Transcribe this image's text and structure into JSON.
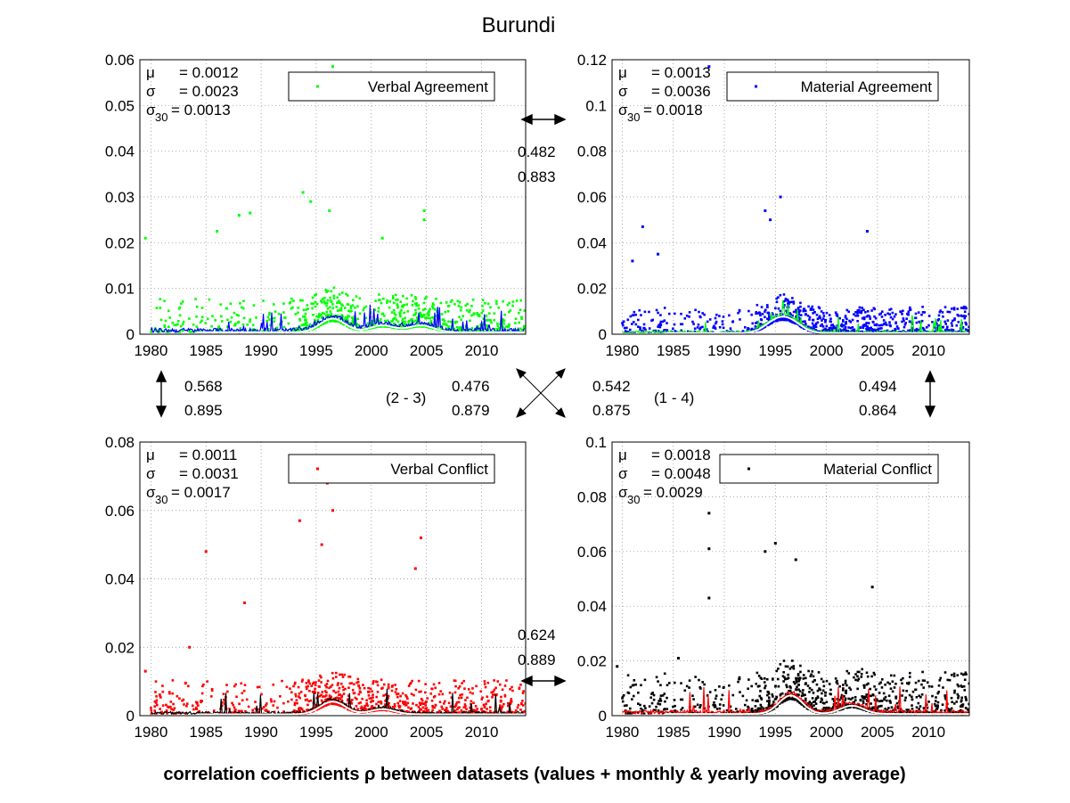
{
  "title": "Burundi",
  "footer": "correlation coefficients ρ between datasets (values + monthly & yearly moving average)",
  "colors": {
    "green": "#00ff00",
    "blue": "#0000ff",
    "red": "#ff0000",
    "black": "#000000",
    "white": "#ffffff"
  },
  "chart_data": [
    {
      "type": "scatter",
      "name": "Verbal Agreement",
      "legend": "Verbal Agreement",
      "legend_position": "top-right",
      "color": "#00ff00",
      "avg_color": "#0000ff",
      "xlim": [
        1979,
        2014
      ],
      "ylim": [
        0,
        0.06
      ],
      "xticks": [
        "1980",
        "1985",
        "1990",
        "1995",
        "2000",
        "2005",
        "2010"
      ],
      "yticks": [
        "0",
        "0.01",
        "0.02",
        "0.03",
        "0.04",
        "0.05",
        "0.06"
      ],
      "grid": true,
      "stats": {
        "mu": "= 0.0012",
        "sigma": "= 0.0023",
        "sigma30": "= 0.0013"
      },
      "base": 0.0012,
      "noise": 0.0023,
      "peaks": [
        [
          1996.5,
          0.004
        ],
        [
          2001,
          0.002
        ],
        [
          2004.5,
          0.002
        ]
      ],
      "outliers": [
        [
          1979.5,
          0.021
        ],
        [
          1986,
          0.0225
        ],
        [
          1988,
          0.026
        ],
        [
          1989,
          0.0265
        ],
        [
          1993.8,
          0.031
        ],
        [
          1994.5,
          0.029
        ],
        [
          1996.2,
          0.027
        ],
        [
          1996.5,
          0.0585
        ],
        [
          2001,
          0.021
        ],
        [
          2004.8,
          0.027
        ],
        [
          2004.8,
          0.025
        ]
      ]
    },
    {
      "type": "scatter",
      "name": "Material Agreement",
      "legend": "Material Agreement",
      "legend_position": "top-right",
      "color": "#0000ff",
      "avg_color": "#00ff00",
      "xlim": [
        1979,
        2014
      ],
      "ylim": [
        0,
        0.12
      ],
      "xticks": [
        "1980",
        "1985",
        "1990",
        "1995",
        "2000",
        "2005",
        "2010"
      ],
      "yticks": [
        "0",
        "0.02",
        "0.04",
        "0.06",
        "0.08",
        "0.1",
        "0.12"
      ],
      "grid": true,
      "stats": {
        "mu": "= 0.0013",
        "sigma": "= 0.0036",
        "sigma30": "= 0.0018"
      },
      "base": 0.0013,
      "noise": 0.0036,
      "peaks": [
        [
          1995,
          0.006
        ],
        [
          1996.5,
          0.006
        ]
      ],
      "outliers": [
        [
          1982,
          0.047
        ],
        [
          1988.5,
          0.117
        ],
        [
          1994,
          0.054
        ],
        [
          1995.5,
          0.06
        ],
        [
          1994.5,
          0.05
        ],
        [
          2004,
          0.045
        ],
        [
          1983.5,
          0.035
        ],
        [
          1981,
          0.032
        ]
      ]
    },
    {
      "type": "scatter",
      "name": "Verbal Conflict",
      "legend": "Verbal Conflict",
      "legend_position": "top-right",
      "color": "#ff0000",
      "avg_color": "#000000",
      "xlim": [
        1979,
        2014
      ],
      "ylim": [
        0,
        0.08
      ],
      "xticks": [
        "1980",
        "1985",
        "1990",
        "1995",
        "2000",
        "2005",
        "2010"
      ],
      "yticks": [
        "0",
        "0.02",
        "0.04",
        "0.06",
        "0.08"
      ],
      "grid": true,
      "stats": {
        "mu": "= 0.0011",
        "sigma": "= 0.0031",
        "sigma30": "= 0.0017"
      },
      "base": 0.0011,
      "noise": 0.0031,
      "peaks": [
        [
          1996.5,
          0.005
        ],
        [
          2001,
          0.002
        ]
      ],
      "outliers": [
        [
          1985,
          0.048
        ],
        [
          1993.5,
          0.057
        ],
        [
          1996,
          0.068
        ],
        [
          1996.5,
          0.06
        ],
        [
          1995.5,
          0.05
        ],
        [
          2004.5,
          0.052
        ],
        [
          2004,
          0.043
        ],
        [
          1983.5,
          0.02
        ],
        [
          1988.5,
          0.033
        ],
        [
          1979.5,
          0.013
        ]
      ]
    },
    {
      "type": "scatter",
      "name": "Material Conflict",
      "legend": "Material Conflict",
      "legend_position": "top-right",
      "color": "#000000",
      "avg_color": "#ff0000",
      "xlim": [
        1979,
        2014
      ],
      "ylim": [
        0,
        0.1
      ],
      "xticks": [
        "1980",
        "1985",
        "1990",
        "1995",
        "2000",
        "2005",
        "2010"
      ],
      "yticks": [
        "0",
        "0.02",
        "0.04",
        "0.06",
        "0.08",
        "0.1"
      ],
      "grid": true,
      "stats": {
        "mu": "= 0.0018",
        "sigma": "= 0.0048",
        "sigma30": "= 0.0029"
      },
      "base": 0.0018,
      "noise": 0.0048,
      "peaks": [
        [
          1996.5,
          0.009
        ],
        [
          2002.5,
          0.004
        ]
      ],
      "outliers": [
        [
          1988.5,
          0.074
        ],
        [
          1988.5,
          0.061
        ],
        [
          1994,
          0.06
        ],
        [
          1995,
          0.063
        ],
        [
          1997,
          0.057
        ],
        [
          2004.5,
          0.047
        ],
        [
          1988.5,
          0.043
        ],
        [
          1979.5,
          0.018
        ],
        [
          1985.5,
          0.021
        ]
      ]
    }
  ],
  "correlations": {
    "top_pair": {
      "r1": "0.482",
      "r2": "0.883"
    },
    "bottom_pair": {
      "r1": "0.624",
      "r2": "0.889"
    },
    "left_pair": {
      "r1": "0.568",
      "r2": "0.895"
    },
    "right_pair": {
      "r1": "0.494",
      "r2": "0.864"
    },
    "diag_2_3": {
      "label": "(2 - 3)",
      "r1": "0.476",
      "r2": "0.879"
    },
    "diag_1_4": {
      "label": "(1 - 4)",
      "r1": "0.542",
      "r2": "0.875"
    }
  },
  "stat_labels": {
    "mu": "μ",
    "sigma": "σ",
    "sigma30_base": "σ",
    "sigma30_sub": "30"
  }
}
